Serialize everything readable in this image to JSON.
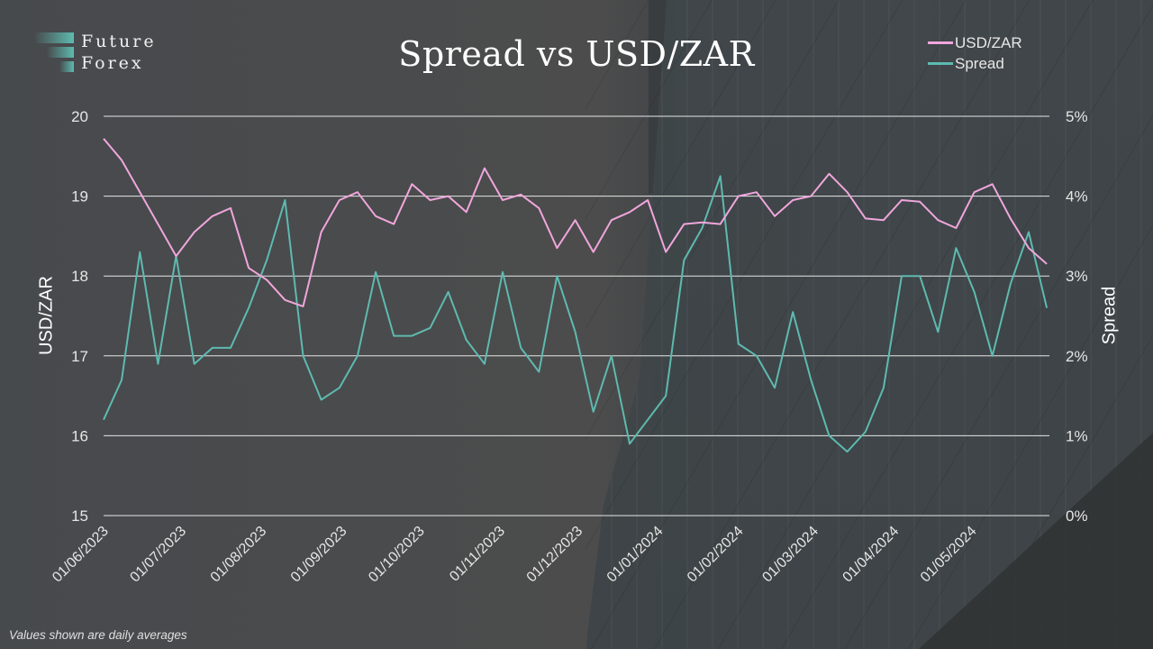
{
  "brand": {
    "line1": "Future",
    "line2": "Forex",
    "accent": "#5ebab0"
  },
  "title": "Spread vs USD/ZAR",
  "legend": [
    {
      "label": "USD/ZAR",
      "color": "#f0a6dc"
    },
    {
      "label": "Spread",
      "color": "#5ebab0"
    }
  ],
  "footnote": "Values shown are daily averages",
  "axes": {
    "left_title": "USD/ZAR",
    "right_title": "Spread",
    "left_ticks": [
      "20",
      "19",
      "18",
      "17",
      "16",
      "15"
    ],
    "right_ticks": [
      "5%",
      "4%",
      "3%",
      "2%",
      "1%",
      "0%"
    ],
    "x_ticks": [
      "01/06/2023",
      "01/07/2023",
      "01/08/2023",
      "01/09/2023",
      "01/10/2023",
      "01/11/2023",
      "01/12/2023",
      "01/01/2024",
      "01/02/2024",
      "01/03/2024",
      "01/04/2024",
      "01/05/2024"
    ]
  },
  "chart_data": {
    "type": "line",
    "title": "Spread vs USD/ZAR",
    "xlabel": "",
    "ylabel": "USD/ZAR",
    "y2label": "Spread",
    "ylim": [
      15,
      20
    ],
    "y2lim": [
      0,
      5
    ],
    "y2_format": "percent",
    "grid": true,
    "legend_position": "top-right",
    "note": "Values shown are daily averages",
    "x_range": [
      "2023-06-01",
      "2024-05-31"
    ],
    "x": [
      "2023-06-01",
      "2023-06-08",
      "2023-06-15",
      "2023-06-22",
      "2023-06-29",
      "2023-07-06",
      "2023-07-13",
      "2023-07-20",
      "2023-07-27",
      "2023-08-03",
      "2023-08-10",
      "2023-08-17",
      "2023-08-24",
      "2023-08-31",
      "2023-09-07",
      "2023-09-14",
      "2023-09-21",
      "2023-09-28",
      "2023-10-05",
      "2023-10-12",
      "2023-10-19",
      "2023-10-26",
      "2023-11-02",
      "2023-11-09",
      "2023-11-16",
      "2023-11-23",
      "2023-11-30",
      "2023-12-07",
      "2023-12-14",
      "2023-12-21",
      "2023-12-28",
      "2024-01-04",
      "2024-01-11",
      "2024-01-18",
      "2024-01-25",
      "2024-02-01",
      "2024-02-08",
      "2024-02-15",
      "2024-02-22",
      "2024-02-29",
      "2024-03-07",
      "2024-03-14",
      "2024-03-21",
      "2024-03-28",
      "2024-04-04",
      "2024-04-11",
      "2024-04-18",
      "2024-04-25",
      "2024-05-02",
      "2024-05-09",
      "2024-05-16",
      "2024-05-23",
      "2024-05-30"
    ],
    "series": [
      {
        "name": "USD/ZAR",
        "axis": "left",
        "color": "#f0a6dc",
        "values": [
          19.72,
          19.45,
          19.05,
          18.65,
          18.25,
          18.55,
          18.75,
          18.85,
          18.1,
          17.95,
          17.7,
          17.62,
          18.55,
          18.95,
          19.05,
          18.75,
          18.65,
          19.15,
          18.95,
          19.0,
          18.8,
          19.35,
          18.95,
          19.02,
          18.85,
          18.35,
          18.7,
          18.3,
          18.7,
          18.8,
          18.95,
          18.3,
          18.65,
          18.67,
          18.65,
          19.0,
          19.05,
          18.75,
          18.95,
          19.0,
          19.28,
          19.05,
          18.72,
          18.7,
          18.95,
          18.93,
          18.7,
          18.6,
          19.05,
          19.15,
          18.72,
          18.35,
          18.15
        ]
      },
      {
        "name": "Spread",
        "axis": "right",
        "unit": "%",
        "values": [
          1.2,
          1.7,
          3.3,
          1.9,
          3.25,
          1.9,
          2.1,
          2.1,
          2.6,
          3.2,
          3.95,
          2.0,
          1.45,
          1.6,
          2.0,
          3.05,
          2.25,
          2.25,
          2.35,
          2.8,
          2.2,
          1.9,
          3.05,
          2.1,
          1.8,
          3.0,
          2.3,
          1.3,
          2.0,
          0.9,
          1.2,
          1.5,
          3.2,
          3.6,
          4.25,
          2.15,
          2.0,
          1.6,
          2.55,
          1.7,
          1.0,
          0.8,
          1.05,
          1.6,
          3.0,
          3.0,
          2.3,
          3.35,
          2.8,
          2.0,
          2.9,
          3.55,
          2.6
        ]
      }
    ]
  }
}
